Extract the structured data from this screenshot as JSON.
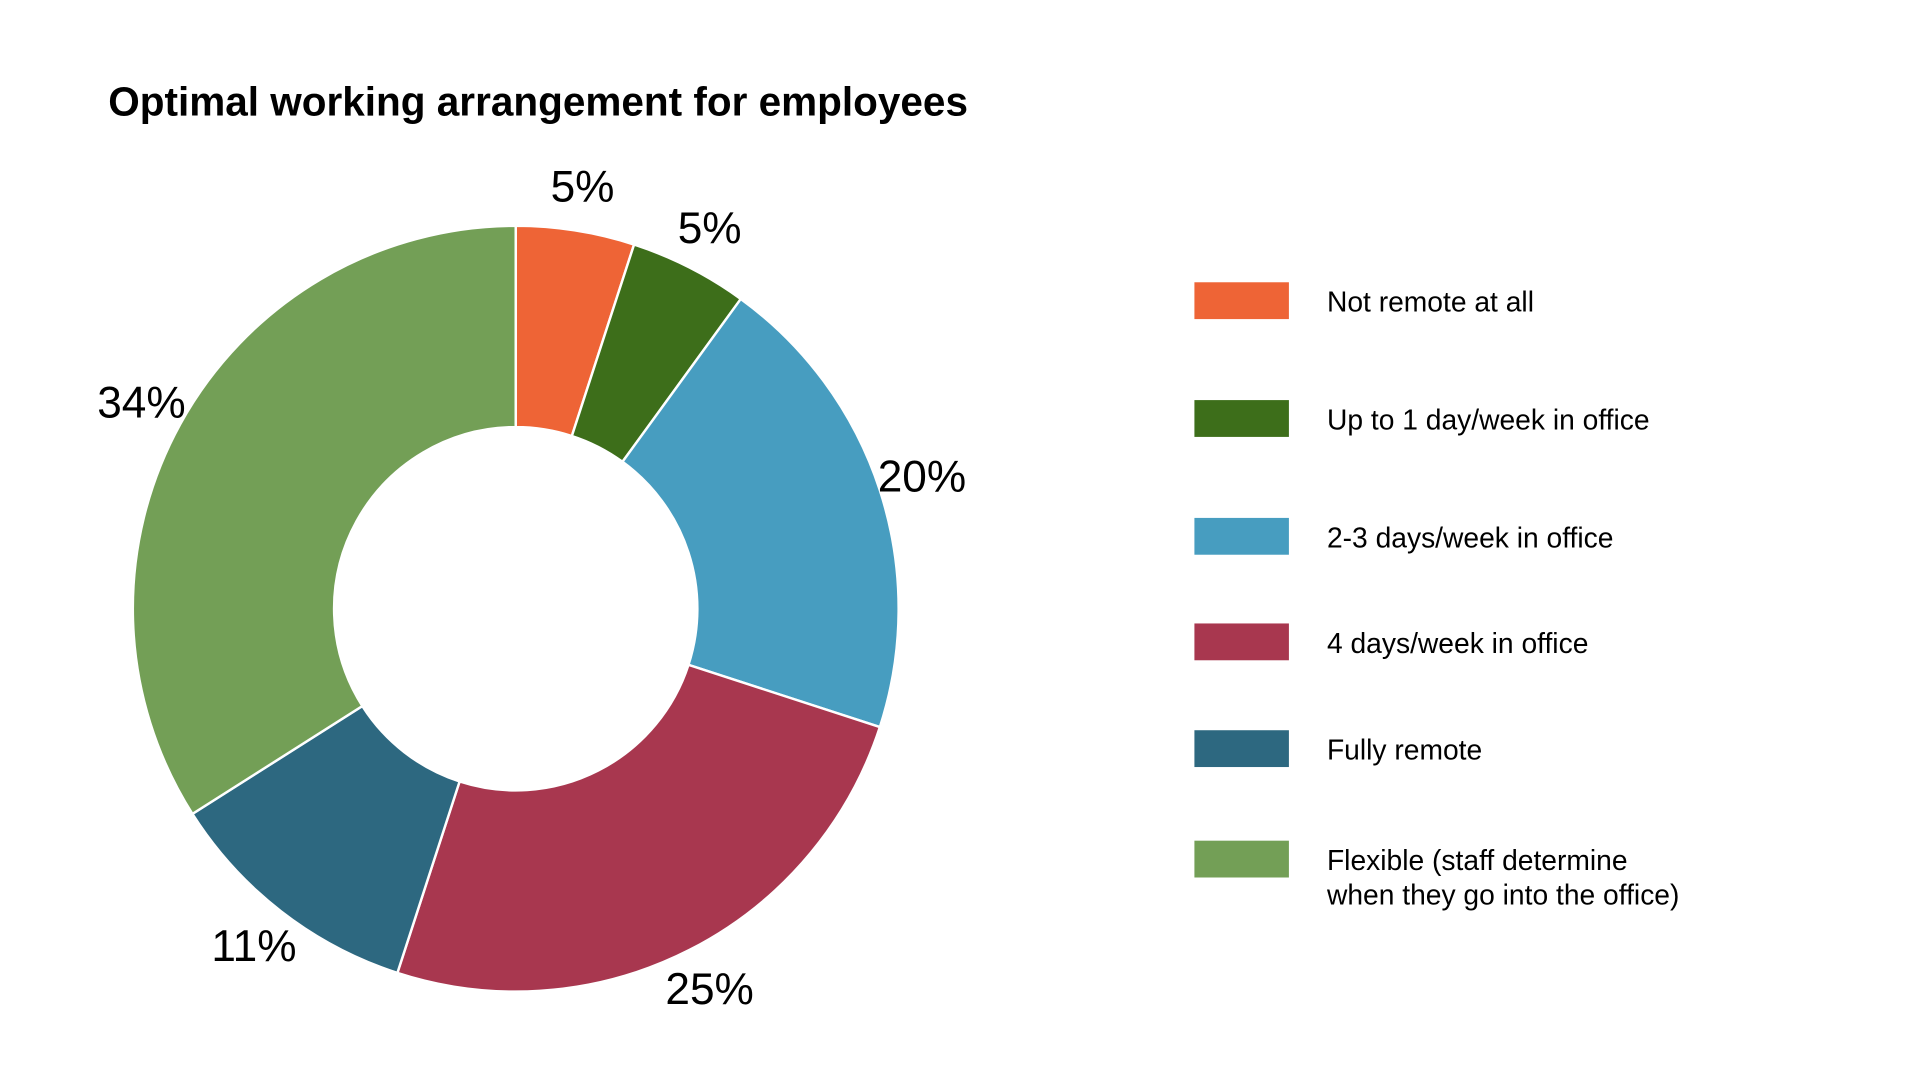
{
  "chart_data": {
    "type": "pie",
    "variant": "donut",
    "title": "Optimal working arrangement for employees",
    "legend_position": "right",
    "slices": [
      {
        "label": "Not remote at all",
        "value": 5,
        "display": "5%",
        "color": "#EE6436"
      },
      {
        "label": "Up to 1 day/week in office",
        "value": 5,
        "display": "5%",
        "color": "#3D6E1A"
      },
      {
        "label": "2-3 days/week in office",
        "value": 20,
        "display": "20%",
        "color": "#479DC0"
      },
      {
        "label": "4 days/week in office",
        "value": 25,
        "display": "25%",
        "color": "#A8374F"
      },
      {
        "label": "Fully remote",
        "value": 11,
        "display": "11%",
        "color": "#2D6880"
      },
      {
        "label": "Flexible (staff determine",
        "label_line2": "when they go into the office)",
        "value": 34,
        "display": "34%",
        "color": "#739F56"
      }
    ]
  }
}
